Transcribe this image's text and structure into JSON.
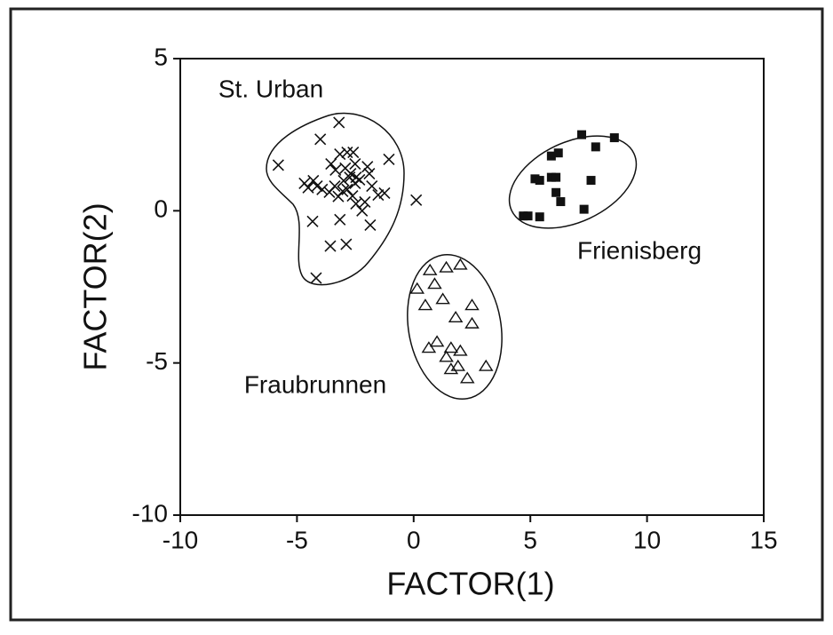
{
  "chart_data": {
    "type": "scatter",
    "x_label": "FACTOR(1)",
    "y_label": "FACTOR(2)",
    "xlim": [
      -10,
      15
    ],
    "ylim": [
      -10,
      5
    ],
    "xticks": [
      -10,
      -5,
      0,
      5,
      10,
      15
    ],
    "yticks": [
      -10,
      -5,
      0,
      5
    ],
    "grid": false,
    "series": [
      {
        "name": "St. Urban",
        "color": "#111111",
        "marker": "x",
        "x": [
          -5.8,
          -4.0,
          -3.2,
          -3.16,
          -2.85,
          -2.59,
          -2.51,
          -3.54,
          -3.35,
          -2.93,
          -2.74,
          -2.51,
          -4.68,
          -4.52,
          -4.3,
          -4.14,
          -3.92,
          -3.61,
          -3.38,
          -3.23,
          -3.04,
          -2.85,
          -2.62,
          -2.47,
          -2.21,
          -1.98,
          -1.9,
          -1.79,
          -1.52,
          -1.25,
          -1.06,
          0.11,
          -4.33,
          -3.16,
          -3.57,
          -2.89,
          -1.86,
          -4.18,
          -2.47,
          -2.7,
          -3.0,
          -2.32,
          -2.09
        ],
        "values": [
          1.5,
          2.35,
          2.9,
          1.86,
          1.92,
          1.92,
          1.54,
          1.54,
          1.34,
          1.4,
          1.1,
          0.9,
          0.9,
          0.76,
          0.99,
          0.81,
          0.7,
          0.61,
          0.81,
          0.47,
          0.64,
          0.7,
          0.49,
          0.23,
          0,
          1.45,
          1.22,
          0.81,
          0.52,
          0.58,
          1.69,
          0.35,
          -0.35,
          -0.29,
          -1.16,
          -1.1,
          -0.47,
          -2.21,
          1.1,
          1.22,
          0.99,
          1.02,
          0.29
        ]
      },
      {
        "name": "Frienisberg",
        "color": "#111111",
        "marker": "square",
        "x": [
          4.7,
          4.9,
          5.4,
          5.2,
          5.4,
          5.9,
          6.2,
          7.2,
          7.8,
          8.6,
          5.9,
          6.1,
          6.1,
          6.3,
          7.6,
          7.3
        ],
        "values": [
          -0.17,
          -0.17,
          -0.2,
          1.05,
          1.0,
          1.8,
          1.9,
          2.5,
          2.1,
          2.4,
          1.1,
          1.1,
          0.6,
          0.3,
          1.0,
          0.05
        ]
      },
      {
        "name": "Fraubrunnen",
        "color": "#111111",
        "marker": "triangle",
        "x": [
          0.7,
          1.4,
          2.0,
          0.9,
          0.15,
          1.25,
          0.5,
          2.5,
          1.8,
          2.5,
          0.65,
          1.0,
          1.6,
          2.0,
          1.4,
          1.9,
          3.1,
          1.6,
          2.3
        ],
        "values": [
          -1.95,
          -1.86,
          -1.77,
          -2.4,
          -2.56,
          -2.9,
          -3.1,
          -3.1,
          -3.5,
          -3.7,
          -4.5,
          -4.3,
          -4.5,
          -4.6,
          -4.8,
          -5.1,
          -5.1,
          -5.2,
          -5.5
        ]
      }
    ]
  }
}
